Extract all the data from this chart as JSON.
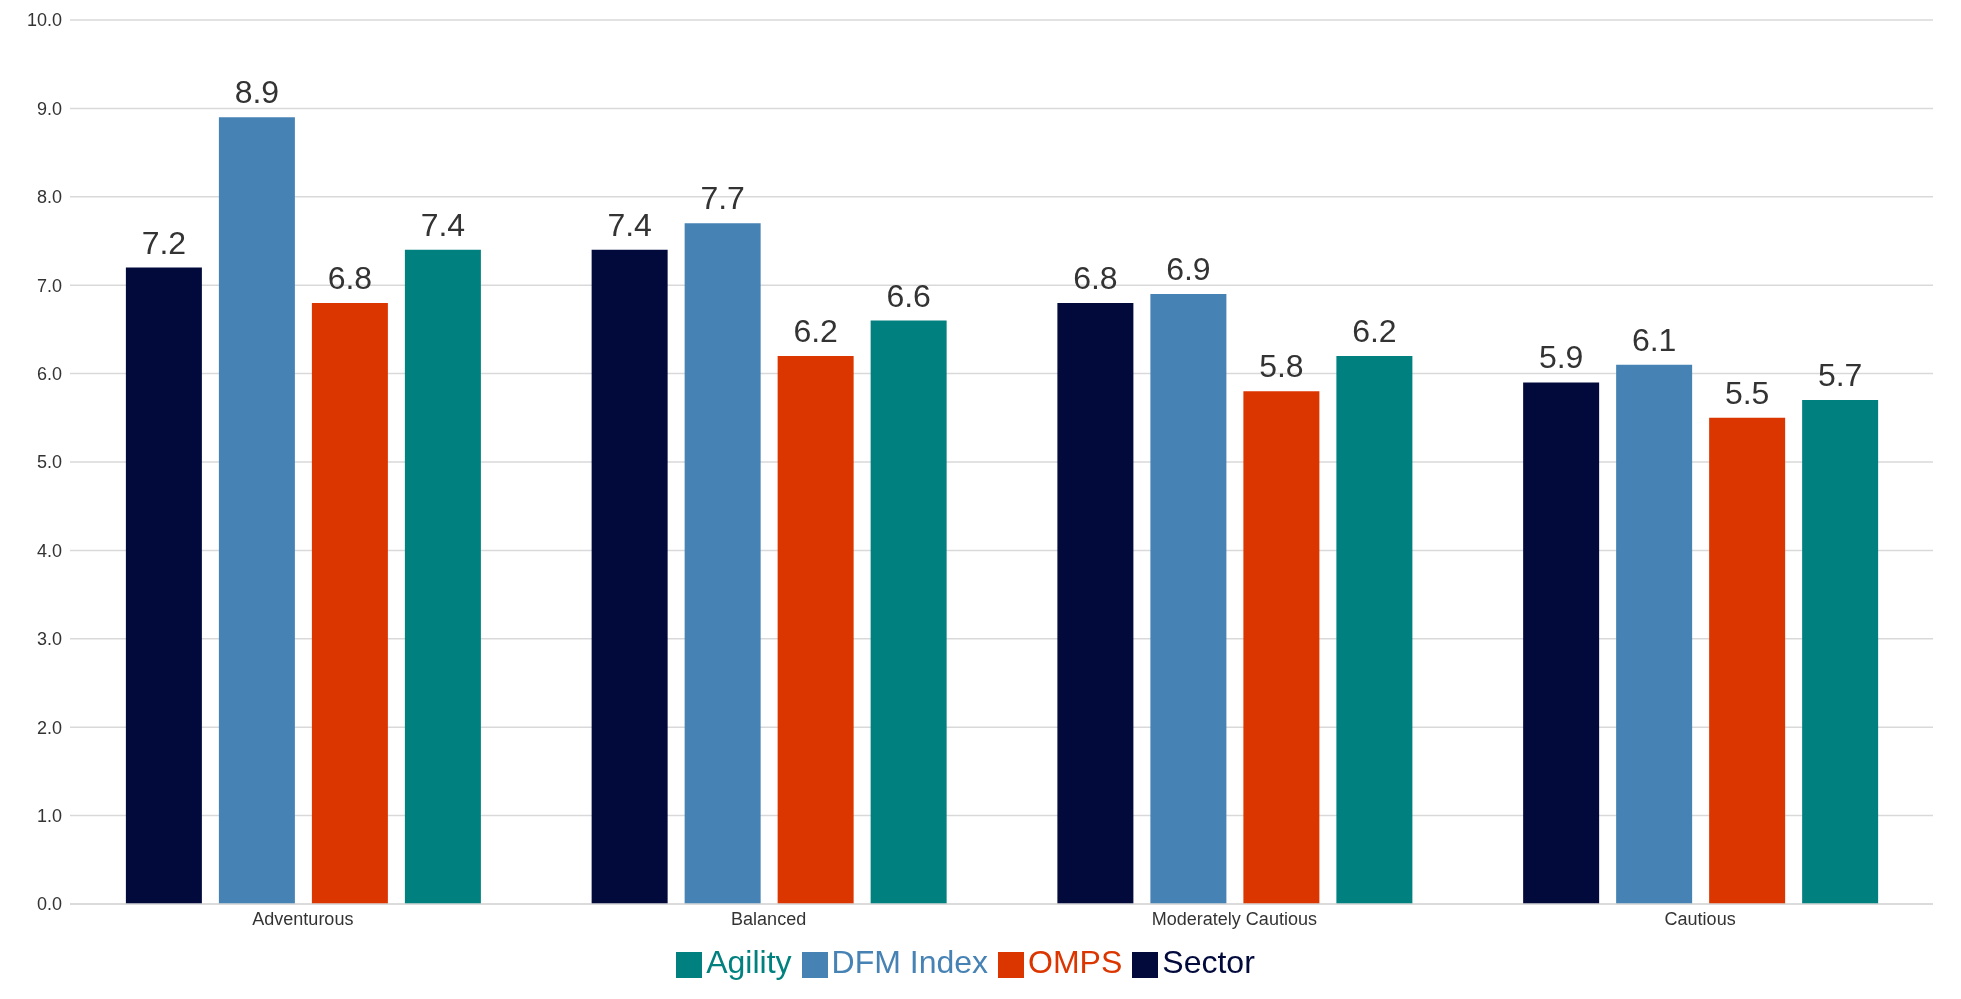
{
  "chart_data": {
    "type": "bar",
    "categories": [
      "Adventurous",
      "Balanced",
      "Moderately Cautious",
      "Cautious"
    ],
    "series": [
      {
        "name": "Sector",
        "color": "#020a3c",
        "values": [
          7.2,
          7.4,
          6.8,
          5.9
        ]
      },
      {
        "name": "DFM Index",
        "color": "#4682b4",
        "values": [
          8.9,
          7.7,
          6.9,
          6.1
        ]
      },
      {
        "name": "OMPS",
        "color": "#dc3600",
        "values": [
          6.8,
          6.2,
          5.8,
          5.5
        ]
      },
      {
        "name": "Agility",
        "color": "#00807f",
        "values": [
          7.4,
          6.6,
          6.2,
          5.7
        ]
      }
    ],
    "ylim": [
      0,
      10
    ],
    "yticks": [
      {
        "value": 0,
        "label": "0.0"
      },
      {
        "value": 1,
        "label": "1.0"
      },
      {
        "value": 2,
        "label": "2.0"
      },
      {
        "value": 3,
        "label": "3.0"
      },
      {
        "value": 4,
        "label": "4.0"
      },
      {
        "value": 5,
        "label": "5.0"
      },
      {
        "value": 6,
        "label": "6.0"
      },
      {
        "value": 7,
        "label": "7.0"
      },
      {
        "value": 8,
        "label": "8.0"
      },
      {
        "value": 9,
        "label": "9.0"
      },
      {
        "value": 10,
        "label": "10.0"
      }
    ],
    "grid": "y",
    "legend": "bottom",
    "data_labels": true
  }
}
